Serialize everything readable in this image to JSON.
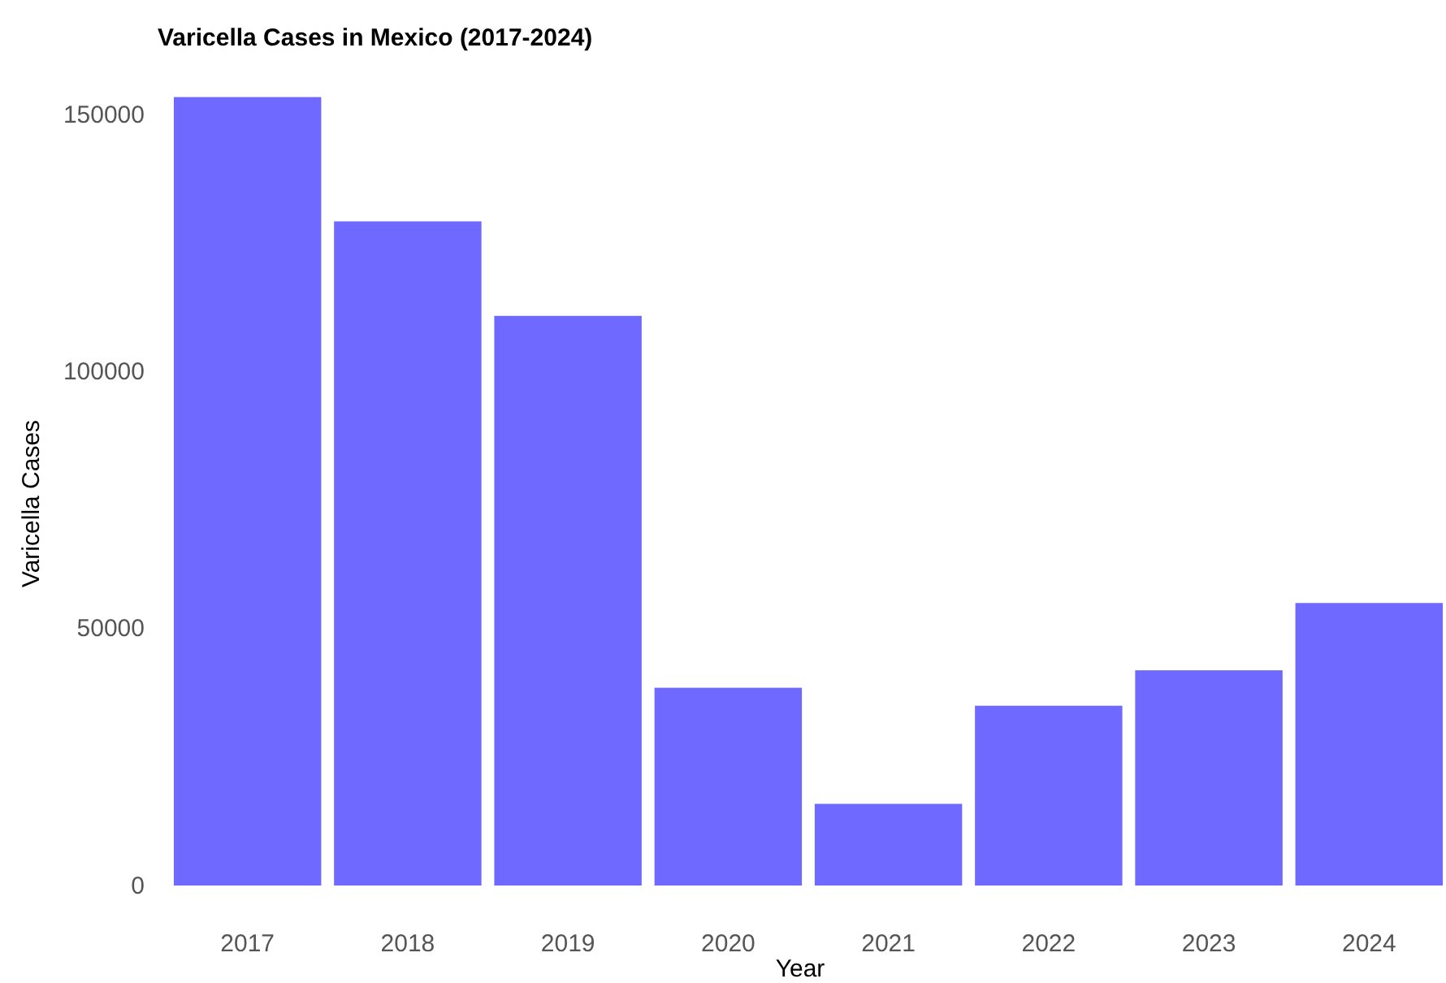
{
  "chart_data": {
    "type": "bar",
    "title": "Varicella Cases in Mexico (2017-2024)",
    "xlabel": "Year",
    "ylabel": "Varicella Cases",
    "categories": [
      "2017",
      "2018",
      "2019",
      "2020",
      "2021",
      "2022",
      "2023",
      "2024"
    ],
    "values": [
      153500,
      129300,
      110900,
      38500,
      15900,
      35000,
      41900,
      55000
    ],
    "color": "#7069ff",
    "ylim": [
      0,
      155000
    ],
    "yticks": [
      0,
      50000,
      100000,
      150000
    ],
    "grid": false
  }
}
